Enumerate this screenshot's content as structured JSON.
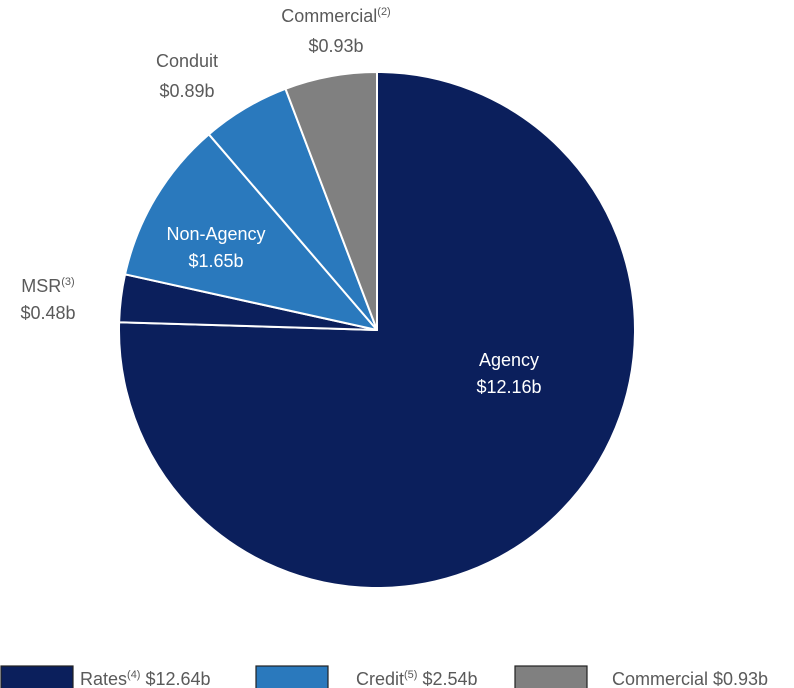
{
  "colors": {
    "rates": "#0b1f5c",
    "credit": "#2a79bd",
    "commercial": "#808080",
    "outside_label": "#5a5a5a",
    "inside_label": "#ffffff",
    "separator": "#ffffff"
  },
  "chart_data": {
    "type": "pie",
    "unit": "b",
    "start": "12 o'clock",
    "direction": "clockwise",
    "slices": [
      {
        "label": "Agency",
        "value": 12.16,
        "value_text": "$12.16b",
        "group": "rates",
        "color": "#0b1f5c",
        "label_position": "inside"
      },
      {
        "label": "MSR",
        "superscript": "(3)",
        "value": 0.48,
        "value_text": "$0.48b",
        "group": "rates",
        "color": "#0b1f5c",
        "label_position": "outside"
      },
      {
        "label": "Non-Agency",
        "value": 1.65,
        "value_text": "$1.65b",
        "group": "credit",
        "color": "#2a79bd",
        "label_position": "inside"
      },
      {
        "label": "Conduit",
        "value": 0.89,
        "value_text": "$0.89b",
        "group": "credit",
        "color": "#2a79bd",
        "label_position": "outside"
      },
      {
        "label": "Commercial",
        "superscript": "(2)",
        "value": 0.93,
        "value_text": "$0.93b",
        "group": "commercial",
        "color": "#808080",
        "label_position": "outside"
      }
    ],
    "legend": {
      "position": "bottom",
      "entries": [
        {
          "label": "Rates",
          "superscript": "(4)",
          "value_text": "$12.64b",
          "color": "#0b1f5c"
        },
        {
          "label": "Credit",
          "superscript": "(5)",
          "value_text": "$2.54b",
          "color": "#2a79bd"
        },
        {
          "label": "Commercial",
          "superscript": "",
          "value_text": "$0.93b",
          "color": "#808080"
        }
      ]
    }
  }
}
